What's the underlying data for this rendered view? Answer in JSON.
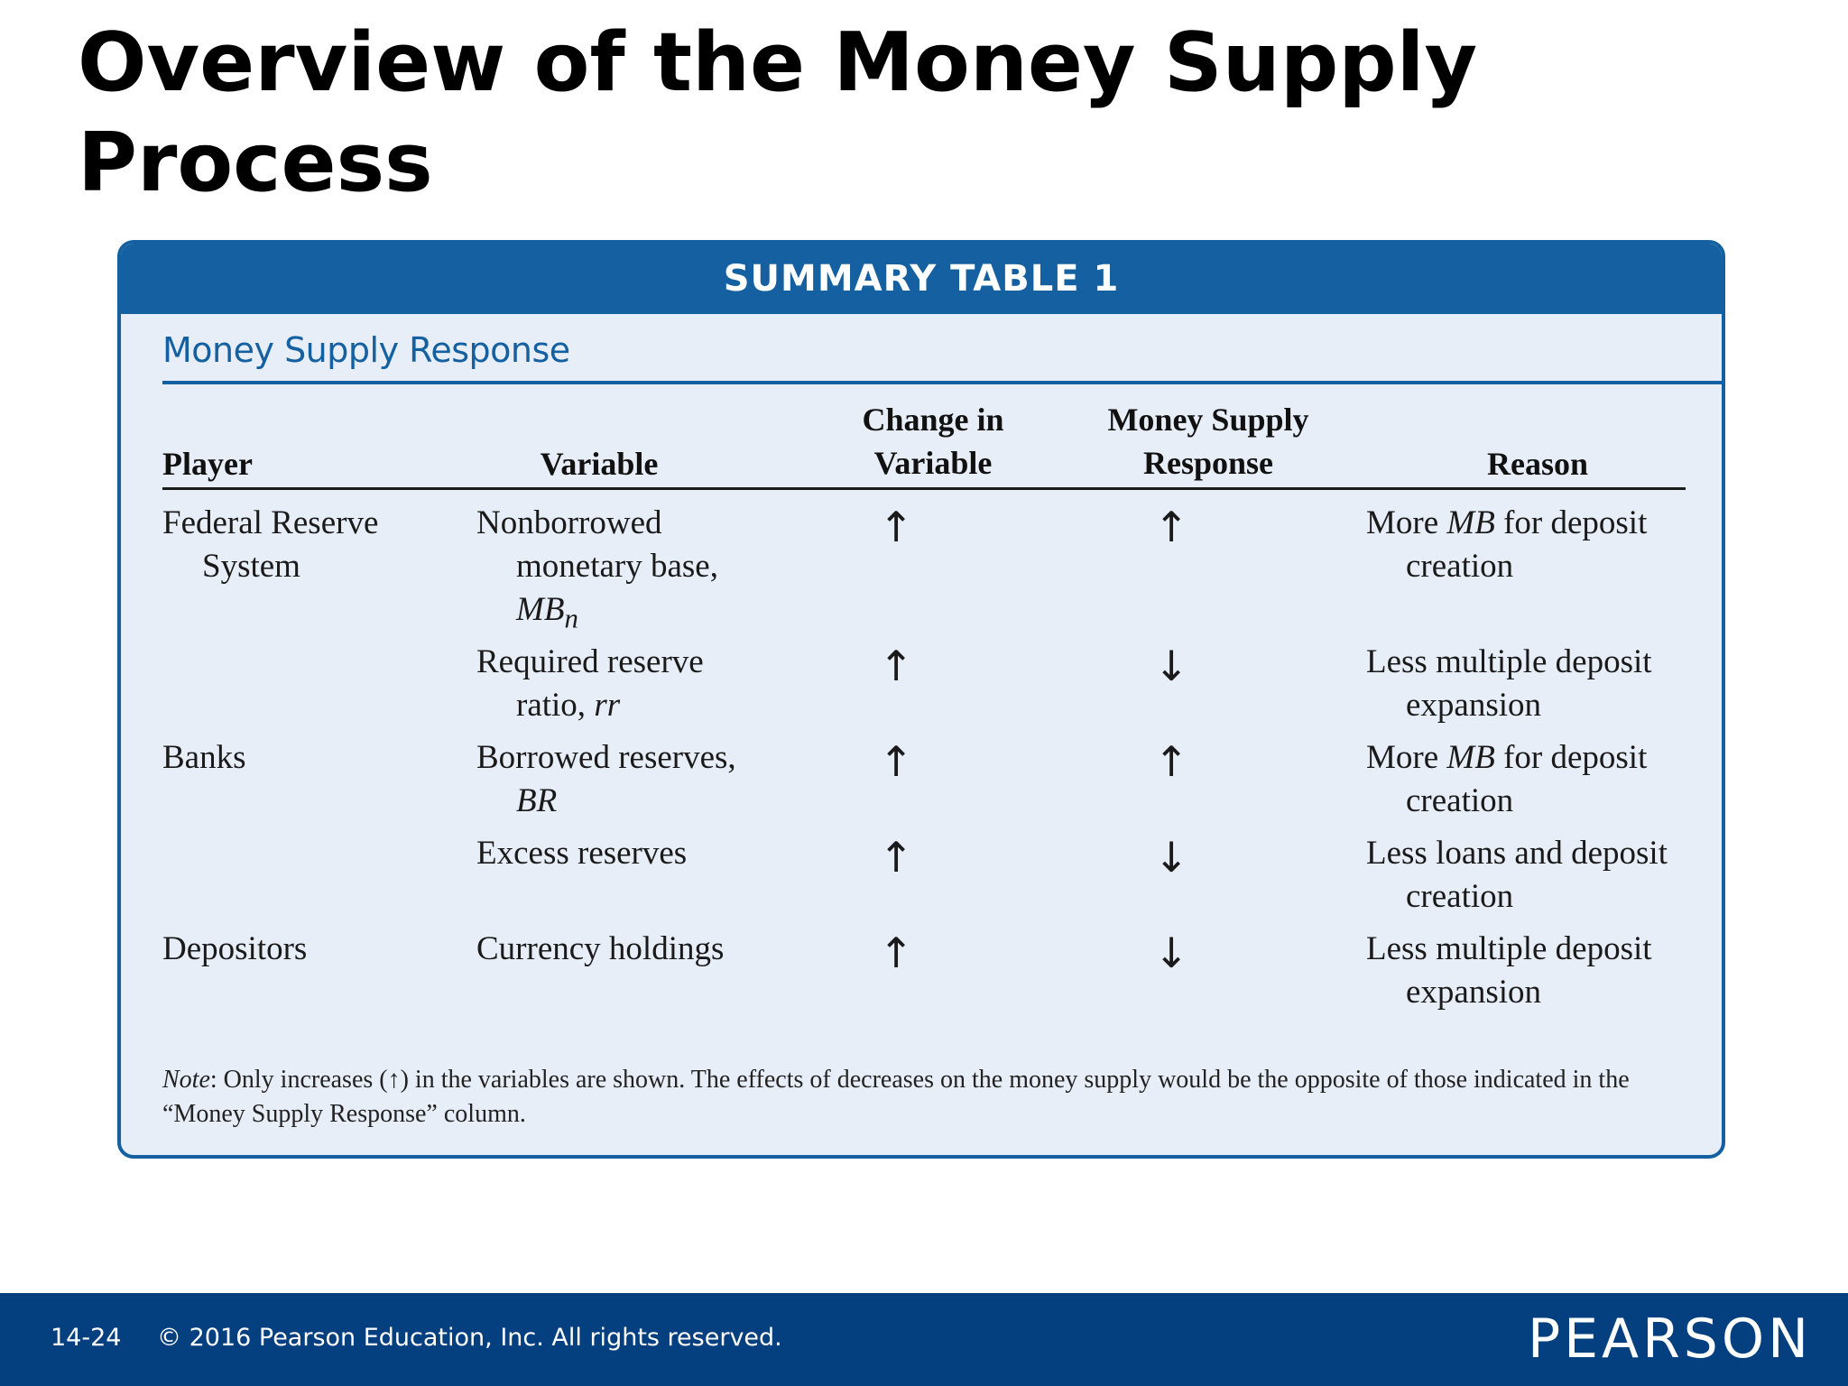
{
  "slide": {
    "title": "Overview of the Money Supply Process"
  },
  "summary_table": {
    "header": "SUMMARY TABLE 1",
    "subtitle": "Money Supply Response",
    "columns": {
      "player": "Player",
      "variable": "Variable",
      "change_line1": "Change in",
      "change_line2": "Variable",
      "response_line1": "Money Supply",
      "response_line2": "Response",
      "reason": "Reason"
    },
    "rows": [
      {
        "player_line1": "Federal Reserve",
        "player_line2": "System",
        "variable_line1": "Nonborrowed",
        "variable_line2": "monetary base,",
        "variable_symbol": "MB",
        "variable_subscript": "n",
        "change": "↑",
        "response": "↑",
        "reason_pre": "More ",
        "reason_symbol": "MB",
        "reason_post": " for deposit",
        "reason_line2": "creation"
      },
      {
        "variable_line1": "Required reserve",
        "variable_line2_pre": "ratio, ",
        "variable_symbol": "rr",
        "change": "↑",
        "response": "↓",
        "reason_line1": "Less multiple deposit",
        "reason_line2": "expansion"
      },
      {
        "player_line1": "Banks",
        "variable_line1": "Borrowed reserves,",
        "variable_symbol": "BR",
        "change": "↑",
        "response": "↑",
        "reason_pre": "More ",
        "reason_symbol": "MB",
        "reason_post": " for deposit",
        "reason_line2": "creation"
      },
      {
        "variable_line1": "Excess reserves",
        "change": "↑",
        "response": "↓",
        "reason_line1": "Less loans and deposit",
        "reason_line2": "creation"
      },
      {
        "player_line1": "Depositors",
        "variable_line1": "Currency holdings",
        "change": "↑",
        "response": "↓",
        "reason_line1": "Less multiple deposit",
        "reason_line2": "expansion"
      }
    ],
    "note": {
      "label": "Note",
      "text_pre": ": Only increases (",
      "arrow": "↑",
      "text_post": ") in the variables are shown. The effects of decreases on the money supply would be the opposite of those indicated in the “Money Supply Response” column."
    }
  },
  "footer": {
    "page_number": "14-24",
    "copyright": "© 2016 Pearson Education, Inc. All rights reserved.",
    "logo": "PEARSON"
  },
  "colors": {
    "accent_blue": "#1460a0",
    "footer_blue": "#043f7f",
    "table_background": "#e8eef7"
  }
}
